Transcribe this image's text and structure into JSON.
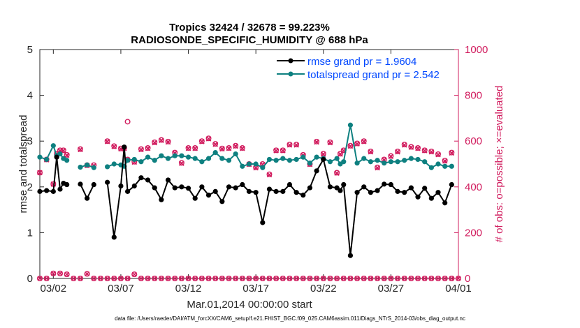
{
  "chart_data": {
    "type": "line",
    "title": "Tropics 32424 / 32678 = 99.223%",
    "subtitle": "RADIOSONDE_SPECIFIC_HUMIDITY @ 688 hPa",
    "xlabel": "Mar.01,2014 00:00:00 start",
    "ylabel_left": "rmse and totalspread",
    "ylabel_right": "# of obs: o=possible; ×=evaluated",
    "ylim_left": [
      0,
      5
    ],
    "ylim_right": [
      0,
      1000
    ],
    "xlim": [
      0,
      31
    ],
    "x_ticks": [
      1,
      6,
      11,
      16,
      21,
      26,
      31
    ],
    "x_tick_labels": [
      "03/02",
      "03/07",
      "03/12",
      "03/17",
      "03/22",
      "03/27",
      "04/01"
    ],
    "y_ticks_left": [
      0,
      1,
      2,
      3,
      4,
      5
    ],
    "y_tick_labels_left": [
      "0",
      "1",
      "2",
      "3",
      "4",
      "5"
    ],
    "y_ticks_right": [
      0,
      200,
      400,
      600,
      800,
      1000
    ],
    "y_tick_labels_right": [
      "0",
      "200",
      "400",
      "600",
      "800",
      "1000"
    ],
    "legend_position": "top-right",
    "x": [
      0,
      0.5,
      1,
      1.25,
      1.5,
      1.75,
      2,
      3,
      3.5,
      4,
      5,
      5.5,
      6,
      6.25,
      6.5,
      7,
      7.5,
      8,
      8.5,
      9,
      9.5,
      10,
      10.5,
      11,
      11.5,
      12,
      12.5,
      13,
      13.5,
      14,
      14.5,
      15,
      15.5,
      16,
      16.5,
      17,
      17.5,
      18,
      18.5,
      19,
      19.5,
      20,
      20.5,
      21,
      21.5,
      22,
      22.25,
      22.5,
      23,
      23.5,
      24,
      24.5,
      25,
      25.5,
      26,
      26.5,
      27,
      27.5,
      28,
      28.5,
      29,
      29.5,
      30,
      30.5
    ],
    "series": [
      {
        "name": "rmse grand pr = 1.9604",
        "color": "#000000",
        "marker": "dot",
        "values": [
          1.9,
          1.92,
          1.9,
          2.65,
          1.95,
          2.08,
          2.05,
          2.06,
          1.75,
          2.05,
          2.1,
          0.9,
          2.02,
          2.87,
          1.9,
          2.02,
          2.2,
          2.15,
          1.98,
          1.72,
          2.15,
          1.98,
          2.0,
          1.97,
          1.75,
          2.0,
          1.82,
          1.9,
          1.68,
          2.0,
          1.98,
          2.05,
          1.9,
          1.88,
          1.22,
          1.95,
          1.9,
          1.9,
          2.05,
          1.88,
          1.82,
          1.98,
          2.35,
          2.6,
          2.0,
          1.98,
          1.92,
          2.05,
          0.5,
          1.88,
          2.0,
          1.88,
          1.92,
          2.06,
          2.05,
          1.9,
          1.88,
          1.98,
          1.78,
          1.97,
          1.75,
          1.88,
          1.65,
          2.05
        ]
      },
      {
        "name": "totalspread grand pr = 2.542",
        "color": "#0e8080",
        "marker": "dot",
        "values": [
          2.65,
          2.6,
          2.9,
          2.68,
          2.72,
          2.62,
          2.58,
          2.43,
          2.48,
          2.42,
          2.44,
          2.5,
          2.48,
          2.45,
          2.58,
          2.6,
          2.55,
          2.65,
          2.58,
          2.68,
          2.62,
          2.68,
          2.68,
          2.65,
          2.62,
          2.55,
          2.62,
          2.75,
          2.62,
          2.58,
          2.72,
          2.45,
          2.5,
          2.5,
          2.42,
          2.6,
          2.58,
          2.62,
          2.58,
          2.6,
          2.65,
          2.52,
          2.65,
          2.62,
          2.55,
          2.62,
          2.5,
          2.55,
          3.35,
          2.52,
          2.62,
          2.55,
          2.58,
          2.52,
          2.55,
          2.55,
          2.58,
          2.62,
          2.6,
          2.55,
          2.42,
          2.5,
          2.45,
          2.45
        ]
      },
      {
        "name": "# of obs possible",
        "color": "#d11c5e",
        "marker": "circle",
        "values": [
          462,
          520,
          412,
          545,
          560,
          560,
          540,
          565,
          495,
          495,
          600,
          578,
          568,
          570,
          520,
          510,
          565,
          570,
          595,
          605,
          598,
          550,
          505,
          570,
          570,
          600,
          612,
          588,
          568,
          570,
          580,
          570,
          500,
          485,
          500,
          455,
          560,
          560,
          585,
          585,
          540,
          500,
          598,
          545,
          595,
          462,
          545,
          560,
          580,
          590,
          600,
          555,
          485,
          520,
          535,
          555,
          585,
          575,
          570,
          560,
          555,
          543,
          515,
          550
        ]
      },
      {
        "name": "# of obs evaluated",
        "color": "#d11c5e",
        "marker": "x",
        "values": [
          462,
          518,
          412,
          545,
          558,
          558,
          538,
          563,
          493,
          493,
          598,
          576,
          566,
          568,
          518,
          508,
          563,
          568,
          593,
          603,
          596,
          548,
          503,
          568,
          568,
          598,
          610,
          586,
          566,
          568,
          578,
          568,
          498,
          483,
          498,
          453,
          558,
          558,
          583,
          583,
          538,
          498,
          596,
          543,
          593,
          460,
          543,
          558,
          578,
          588,
          598,
          553,
          483,
          518,
          533,
          553,
          583,
          573,
          568,
          558,
          553,
          541,
          513,
          548
        ]
      }
    ],
    "possible_near_zero": [
      0,
      0,
      22,
      22,
      18,
      0,
      0,
      20,
      0,
      0,
      0,
      0,
      0,
      0,
      18,
      0,
      0,
      0,
      0,
      0,
      0,
      0,
      0,
      0,
      0,
      0,
      0,
      0,
      0,
      0,
      0,
      0,
      0,
      0,
      0,
      0,
      0,
      0,
      0,
      0,
      0,
      0,
      0,
      0,
      0,
      0,
      0,
      0,
      0,
      0,
      0,
      0,
      0,
      0,
      0,
      0,
      0,
      0,
      0,
      0,
      0,
      0,
      0,
      0,
      0,
      0
    ],
    "extra_circles": [
      {
        "x": 6.5,
        "y": 685
      },
      {
        "x": 30.5,
        "y": 0
      }
    ],
    "footer": "data file: /Users/raeder/DAI/ATM_forcXX/CAM6_setup/f.e21.FHIST_BGC.f09_025.CAM6assim.011/Diags_NTrS_2014-03/obs_diag_output.nc"
  }
}
